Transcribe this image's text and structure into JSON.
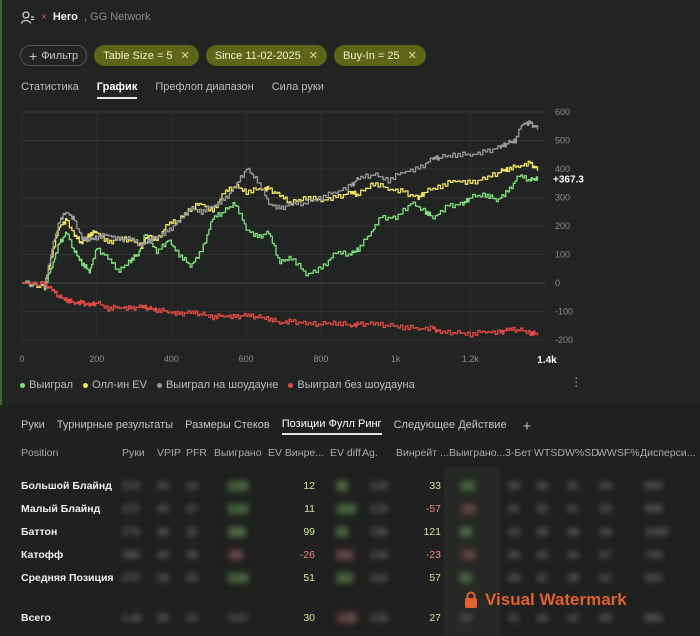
{
  "header": {
    "name": "Hero",
    "network": "GG Network",
    "remove": "×"
  },
  "filters": {
    "add_label": "Фильтр",
    "chips": [
      {
        "label": "Table Size = 5"
      },
      {
        "label": "Since 11-02-2025"
      },
      {
        "label": "Buy-In = 25"
      }
    ]
  },
  "tabs": [
    "Статистика",
    "График",
    "Префлоп диапазон",
    "Сила руки"
  ],
  "active_tab": 1,
  "chart_data": {
    "type": "line",
    "x_ticks": [
      "0",
      "200",
      "400",
      "600",
      "800",
      "1k",
      "1.2k"
    ],
    "x_max_label": "1.4k",
    "xlim": [
      0,
      1400
    ],
    "y_ticks": [
      "600",
      "500",
      "400",
      "300",
      "200",
      "100",
      "0",
      "-100",
      "-200"
    ],
    "ylim": [
      -200,
      600
    ],
    "current_value_label": "+367.3",
    "series": [
      {
        "name": "Выиграл",
        "color": "#7ee07a",
        "points": [
          [
            0,
            0
          ],
          [
            60,
            -15
          ],
          [
            80,
            60
          ],
          [
            100,
            140
          ],
          [
            120,
            180
          ],
          [
            140,
            110
          ],
          [
            160,
            70
          ],
          [
            180,
            40
          ],
          [
            200,
            120
          ],
          [
            230,
            90
          ],
          [
            260,
            40
          ],
          [
            290,
            80
          ],
          [
            310,
            100
          ],
          [
            330,
            170
          ],
          [
            360,
            110
          ],
          [
            390,
            150
          ],
          [
            420,
            100
          ],
          [
            450,
            60
          ],
          [
            480,
            110
          ],
          [
            510,
            230
          ],
          [
            540,
            250
          ],
          [
            570,
            280
          ],
          [
            600,
            190
          ],
          [
            630,
            160
          ],
          [
            660,
            180
          ],
          [
            690,
            70
          ],
          [
            720,
            90
          ],
          [
            760,
            30
          ],
          [
            800,
            50
          ],
          [
            840,
            110
          ],
          [
            880,
            100
          ],
          [
            900,
            120
          ],
          [
            930,
            170
          ],
          [
            960,
            230
          ],
          [
            1000,
            230
          ],
          [
            1040,
            280
          ],
          [
            1080,
            250
          ],
          [
            1100,
            230
          ],
          [
            1140,
            270
          ],
          [
            1180,
            280
          ],
          [
            1200,
            300
          ],
          [
            1240,
            310
          ],
          [
            1270,
            290
          ],
          [
            1300,
            320
          ],
          [
            1330,
            380
          ],
          [
            1360,
            360
          ],
          [
            1380,
            367
          ]
        ]
      },
      {
        "name": "Олл-ин EV",
        "color": "#f2e463",
        "points": [
          [
            0,
            0
          ],
          [
            60,
            -10
          ],
          [
            80,
            100
          ],
          [
            100,
            200
          ],
          [
            120,
            220
          ],
          [
            140,
            170
          ],
          [
            160,
            140
          ],
          [
            180,
            170
          ],
          [
            200,
            180
          ],
          [
            230,
            140
          ],
          [
            260,
            160
          ],
          [
            290,
            150
          ],
          [
            320,
            130
          ],
          [
            340,
            170
          ],
          [
            360,
            150
          ],
          [
            390,
            210
          ],
          [
            420,
            220
          ],
          [
            450,
            260
          ],
          [
            480,
            280
          ],
          [
            510,
            250
          ],
          [
            540,
            320
          ],
          [
            570,
            340
          ],
          [
            600,
            320
          ],
          [
            640,
            330
          ],
          [
            660,
            330
          ],
          [
            690,
            310
          ],
          [
            720,
            280
          ],
          [
            760,
            300
          ],
          [
            800,
            290
          ],
          [
            840,
            300
          ],
          [
            880,
            320
          ],
          [
            900,
            310
          ],
          [
            940,
            350
          ],
          [
            980,
            330
          ],
          [
            1020,
            320
          ],
          [
            1060,
            300
          ],
          [
            1080,
            320
          ],
          [
            1120,
            340
          ],
          [
            1160,
            360
          ],
          [
            1200,
            350
          ],
          [
            1240,
            370
          ],
          [
            1280,
            390
          ],
          [
            1300,
            400
          ],
          [
            1330,
            410
          ],
          [
            1360,
            420
          ],
          [
            1380,
            400
          ]
        ]
      },
      {
        "name": "Выиграл на шоудауне",
        "color": "#9a9a9a",
        "points": [
          [
            0,
            0
          ],
          [
            60,
            -10
          ],
          [
            80,
            120
          ],
          [
            100,
            220
          ],
          [
            120,
            250
          ],
          [
            140,
            220
          ],
          [
            160,
            160
          ],
          [
            180,
            150
          ],
          [
            200,
            160
          ],
          [
            230,
            170
          ],
          [
            260,
            150
          ],
          [
            290,
            160
          ],
          [
            320,
            130
          ],
          [
            340,
            150
          ],
          [
            360,
            160
          ],
          [
            390,
            180
          ],
          [
            420,
            220
          ],
          [
            450,
            260
          ],
          [
            480,
            250
          ],
          [
            510,
            270
          ],
          [
            540,
            290
          ],
          [
            570,
            340
          ],
          [
            600,
            400
          ],
          [
            630,
            360
          ],
          [
            660,
            280
          ],
          [
            690,
            260
          ],
          [
            720,
            280
          ],
          [
            760,
            280
          ],
          [
            800,
            300
          ],
          [
            840,
            320
          ],
          [
            880,
            340
          ],
          [
            900,
            370
          ],
          [
            940,
            380
          ],
          [
            980,
            360
          ],
          [
            1020,
            390
          ],
          [
            1060,
            400
          ],
          [
            1100,
            440
          ],
          [
            1120,
            440
          ],
          [
            1160,
            450
          ],
          [
            1200,
            450
          ],
          [
            1240,
            460
          ],
          [
            1280,
            480
          ],
          [
            1300,
            490
          ],
          [
            1320,
            500
          ],
          [
            1340,
            560
          ],
          [
            1360,
            560
          ],
          [
            1380,
            545
          ]
        ]
      },
      {
        "name": "Выиграл без шоудауна",
        "color": "#e24b43",
        "points": [
          [
            0,
            0
          ],
          [
            60,
            -5
          ],
          [
            80,
            -20
          ],
          [
            100,
            -50
          ],
          [
            120,
            -60
          ],
          [
            140,
            -70
          ],
          [
            160,
            -70
          ],
          [
            180,
            -75
          ],
          [
            200,
            -70
          ],
          [
            230,
            -90
          ],
          [
            260,
            -85
          ],
          [
            290,
            -90
          ],
          [
            320,
            -80
          ],
          [
            340,
            -90
          ],
          [
            360,
            -95
          ],
          [
            390,
            -100
          ],
          [
            420,
            -110
          ],
          [
            450,
            -100
          ],
          [
            480,
            -110
          ],
          [
            510,
            -120
          ],
          [
            540,
            -115
          ],
          [
            570,
            -120
          ],
          [
            600,
            -110
          ],
          [
            630,
            -120
          ],
          [
            660,
            -125
          ],
          [
            690,
            -140
          ],
          [
            720,
            -135
          ],
          [
            760,
            -140
          ],
          [
            800,
            -145
          ],
          [
            840,
            -140
          ],
          [
            880,
            -150
          ],
          [
            900,
            -145
          ],
          [
            940,
            -140
          ],
          [
            980,
            -150
          ],
          [
            1020,
            -155
          ],
          [
            1060,
            -160
          ],
          [
            1100,
            -160
          ],
          [
            1120,
            -170
          ],
          [
            1160,
            -175
          ],
          [
            1200,
            -180
          ],
          [
            1240,
            -170
          ],
          [
            1280,
            -175
          ],
          [
            1300,
            -160
          ],
          [
            1330,
            -165
          ],
          [
            1360,
            -175
          ],
          [
            1380,
            -180
          ]
        ]
      }
    ]
  },
  "bottom_tabs": [
    "Руки",
    "Турнирные результаты",
    "Размеры Стеков",
    "Позиции Фулл Ринг",
    "Следующее Действие"
  ],
  "bottom_active_tab": 3,
  "add_tab": "+",
  "table": {
    "headers": [
      "Position",
      "Руки",
      "VPIP",
      "PFR",
      "Выиграно",
      "EV Винре...",
      "EV diff.",
      "Ag.",
      "Винрейт ...",
      "Выиграно...",
      "3-Бет",
      "WTSD",
      "W%SD",
      "WWSF%",
      "Дисперси..."
    ],
    "rows": [
      {
        "position": "Большой Блайнд",
        "ev_winrate": "12",
        "ev_sign": "pos",
        "winrate": "33",
        "wr_sign": "pos",
        "blur": [
          "274",
          "34",
          "14",
          "1.04",
          "36",
          "120",
          "-41",
          "28",
          "36",
          "31",
          "64",
          "840"
        ]
      },
      {
        "position": "Малый Блайнд",
        "ev_winrate": "11",
        "ev_sign": "pos",
        "winrate": "-57",
        "wr_sign": "neg",
        "blur": [
          "272",
          "40",
          "37",
          "1.23",
          "-114",
          "124",
          "-16",
          "31",
          "32",
          "41",
          "62",
          "908"
        ]
      },
      {
        "position": "Баттон",
        "ev_winrate": "99",
        "ev_sign": "pos",
        "winrate": "121",
        "wr_sign": "pos",
        "blur": [
          "273",
          "36",
          "32",
          "186",
          "44",
          "136",
          "68",
          "24",
          "38",
          "48",
          "56",
          "1060"
        ]
      },
      {
        "position": "Катофф",
        "ev_winrate": "-26",
        "ev_sign": "neg",
        "winrate": "-23",
        "wr_sign": "neg",
        "blur": [
          "286",
          "40",
          "35",
          "-81",
          "161",
          "134",
          "-14",
          "36",
          "32",
          "44",
          "57",
          "740"
        ]
      },
      {
        "position": "Средняя Позиция",
        "ev_winrate": "51",
        "ev_sign": "pos",
        "winrate": "57",
        "wr_sign": "pos",
        "blur": [
          "270",
          "28",
          "26",
          "1.44",
          "116",
          "124",
          "84",
          "28",
          "31",
          "38",
          "61",
          "820"
        ]
      }
    ],
    "total": {
      "position": "Всего",
      "ev_winrate": "30",
      "winrate": "27",
      "blur": [
        "1.4k",
        "36",
        "24",
        "3.67",
        "-135",
        "126",
        "24",
        "31",
        "34",
        "42",
        "60",
        "880"
      ]
    }
  },
  "watermark": {
    "text": "Visual Watermark"
  }
}
